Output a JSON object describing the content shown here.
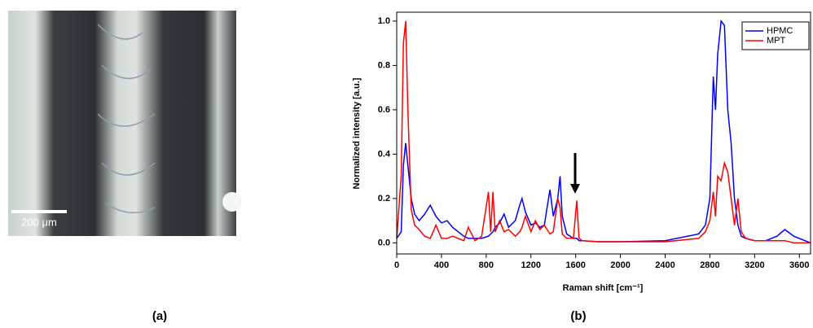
{
  "figure": {
    "labels": [
      "(a)",
      "(b)"
    ],
    "image": {
      "scale_bar": "200 μm"
    }
  },
  "chart_data": {
    "type": "line",
    "xlabel": "Raman shift [cm⁻¹]",
    "ylabel": "Normalized intensity [a.u.]",
    "x": [
      0,
      40,
      60,
      80,
      100,
      130,
      160,
      200,
      250,
      300,
      350,
      400,
      450,
      500,
      550,
      600,
      640,
      700,
      760,
      820,
      840,
      860,
      880,
      920,
      960,
      1000,
      1060,
      1100,
      1120,
      1150,
      1200,
      1240,
      1280,
      1320,
      1370,
      1400,
      1440,
      1460,
      1480,
      1520,
      1580,
      1610,
      1630,
      1660,
      1800,
      2000,
      2400,
      2700,
      2760,
      2800,
      2830,
      2850,
      2870,
      2900,
      2930,
      2960,
      2990,
      3020,
      3050,
      3080,
      3120,
      3200,
      3300,
      3400,
      3470,
      3550,
      3700
    ],
    "series": [
      {
        "name": "HPMC",
        "color": "#0000ff",
        "values": [
          0.02,
          0.05,
          0.35,
          0.45,
          0.35,
          0.2,
          0.13,
          0.1,
          0.13,
          0.17,
          0.12,
          0.09,
          0.1,
          0.07,
          0.05,
          0.03,
          0.02,
          0.02,
          0.02,
          0.03,
          0.04,
          0.05,
          0.07,
          0.09,
          0.13,
          0.07,
          0.1,
          0.17,
          0.2,
          0.14,
          0.08,
          0.09,
          0.07,
          0.08,
          0.24,
          0.12,
          0.2,
          0.3,
          0.12,
          0.04,
          0.02,
          0.02,
          0.01,
          0.01,
          0.005,
          0.005,
          0.01,
          0.04,
          0.08,
          0.2,
          0.75,
          0.6,
          0.85,
          1.0,
          0.98,
          0.6,
          0.45,
          0.2,
          0.08,
          0.03,
          0.02,
          0.01,
          0.01,
          0.03,
          0.06,
          0.03,
          0.0
        ]
      },
      {
        "name": "MPT",
        "color": "#ff0000",
        "values": [
          0.02,
          0.3,
          0.9,
          1.0,
          0.6,
          0.15,
          0.08,
          0.06,
          0.03,
          0.02,
          0.08,
          0.02,
          0.02,
          0.03,
          0.02,
          0.01,
          0.07,
          0.01,
          0.03,
          0.23,
          0.05,
          0.23,
          0.05,
          0.1,
          0.05,
          0.06,
          0.03,
          0.05,
          0.07,
          0.12,
          0.05,
          0.1,
          0.06,
          0.08,
          0.04,
          0.05,
          0.2,
          0.16,
          0.04,
          0.02,
          0.02,
          0.19,
          0.02,
          0.01,
          0.005,
          0.005,
          0.005,
          0.02,
          0.05,
          0.1,
          0.23,
          0.12,
          0.3,
          0.28,
          0.36,
          0.32,
          0.2,
          0.08,
          0.2,
          0.05,
          0.02,
          0.01,
          0.01,
          0.01,
          0.01,
          0.0,
          0.0
        ]
      }
    ],
    "xlim": [
      0,
      3700
    ],
    "ylim": [
      -0.05,
      1.04
    ],
    "xticks": [
      0,
      400,
      800,
      1200,
      1600,
      2000,
      2400,
      2800,
      3200,
      3600
    ],
    "yticks": [
      {
        "value": 0,
        "label": "0.0"
      },
      {
        "value": 0.2,
        "label": "0.2"
      },
      {
        "value": 0.4,
        "label": "0.4"
      },
      {
        "value": 0.6,
        "label": "0.6"
      },
      {
        "value": 0.8,
        "label": "0.8"
      },
      {
        "value": 1,
        "label": "1.0"
      }
    ],
    "legend": "upper right"
  }
}
